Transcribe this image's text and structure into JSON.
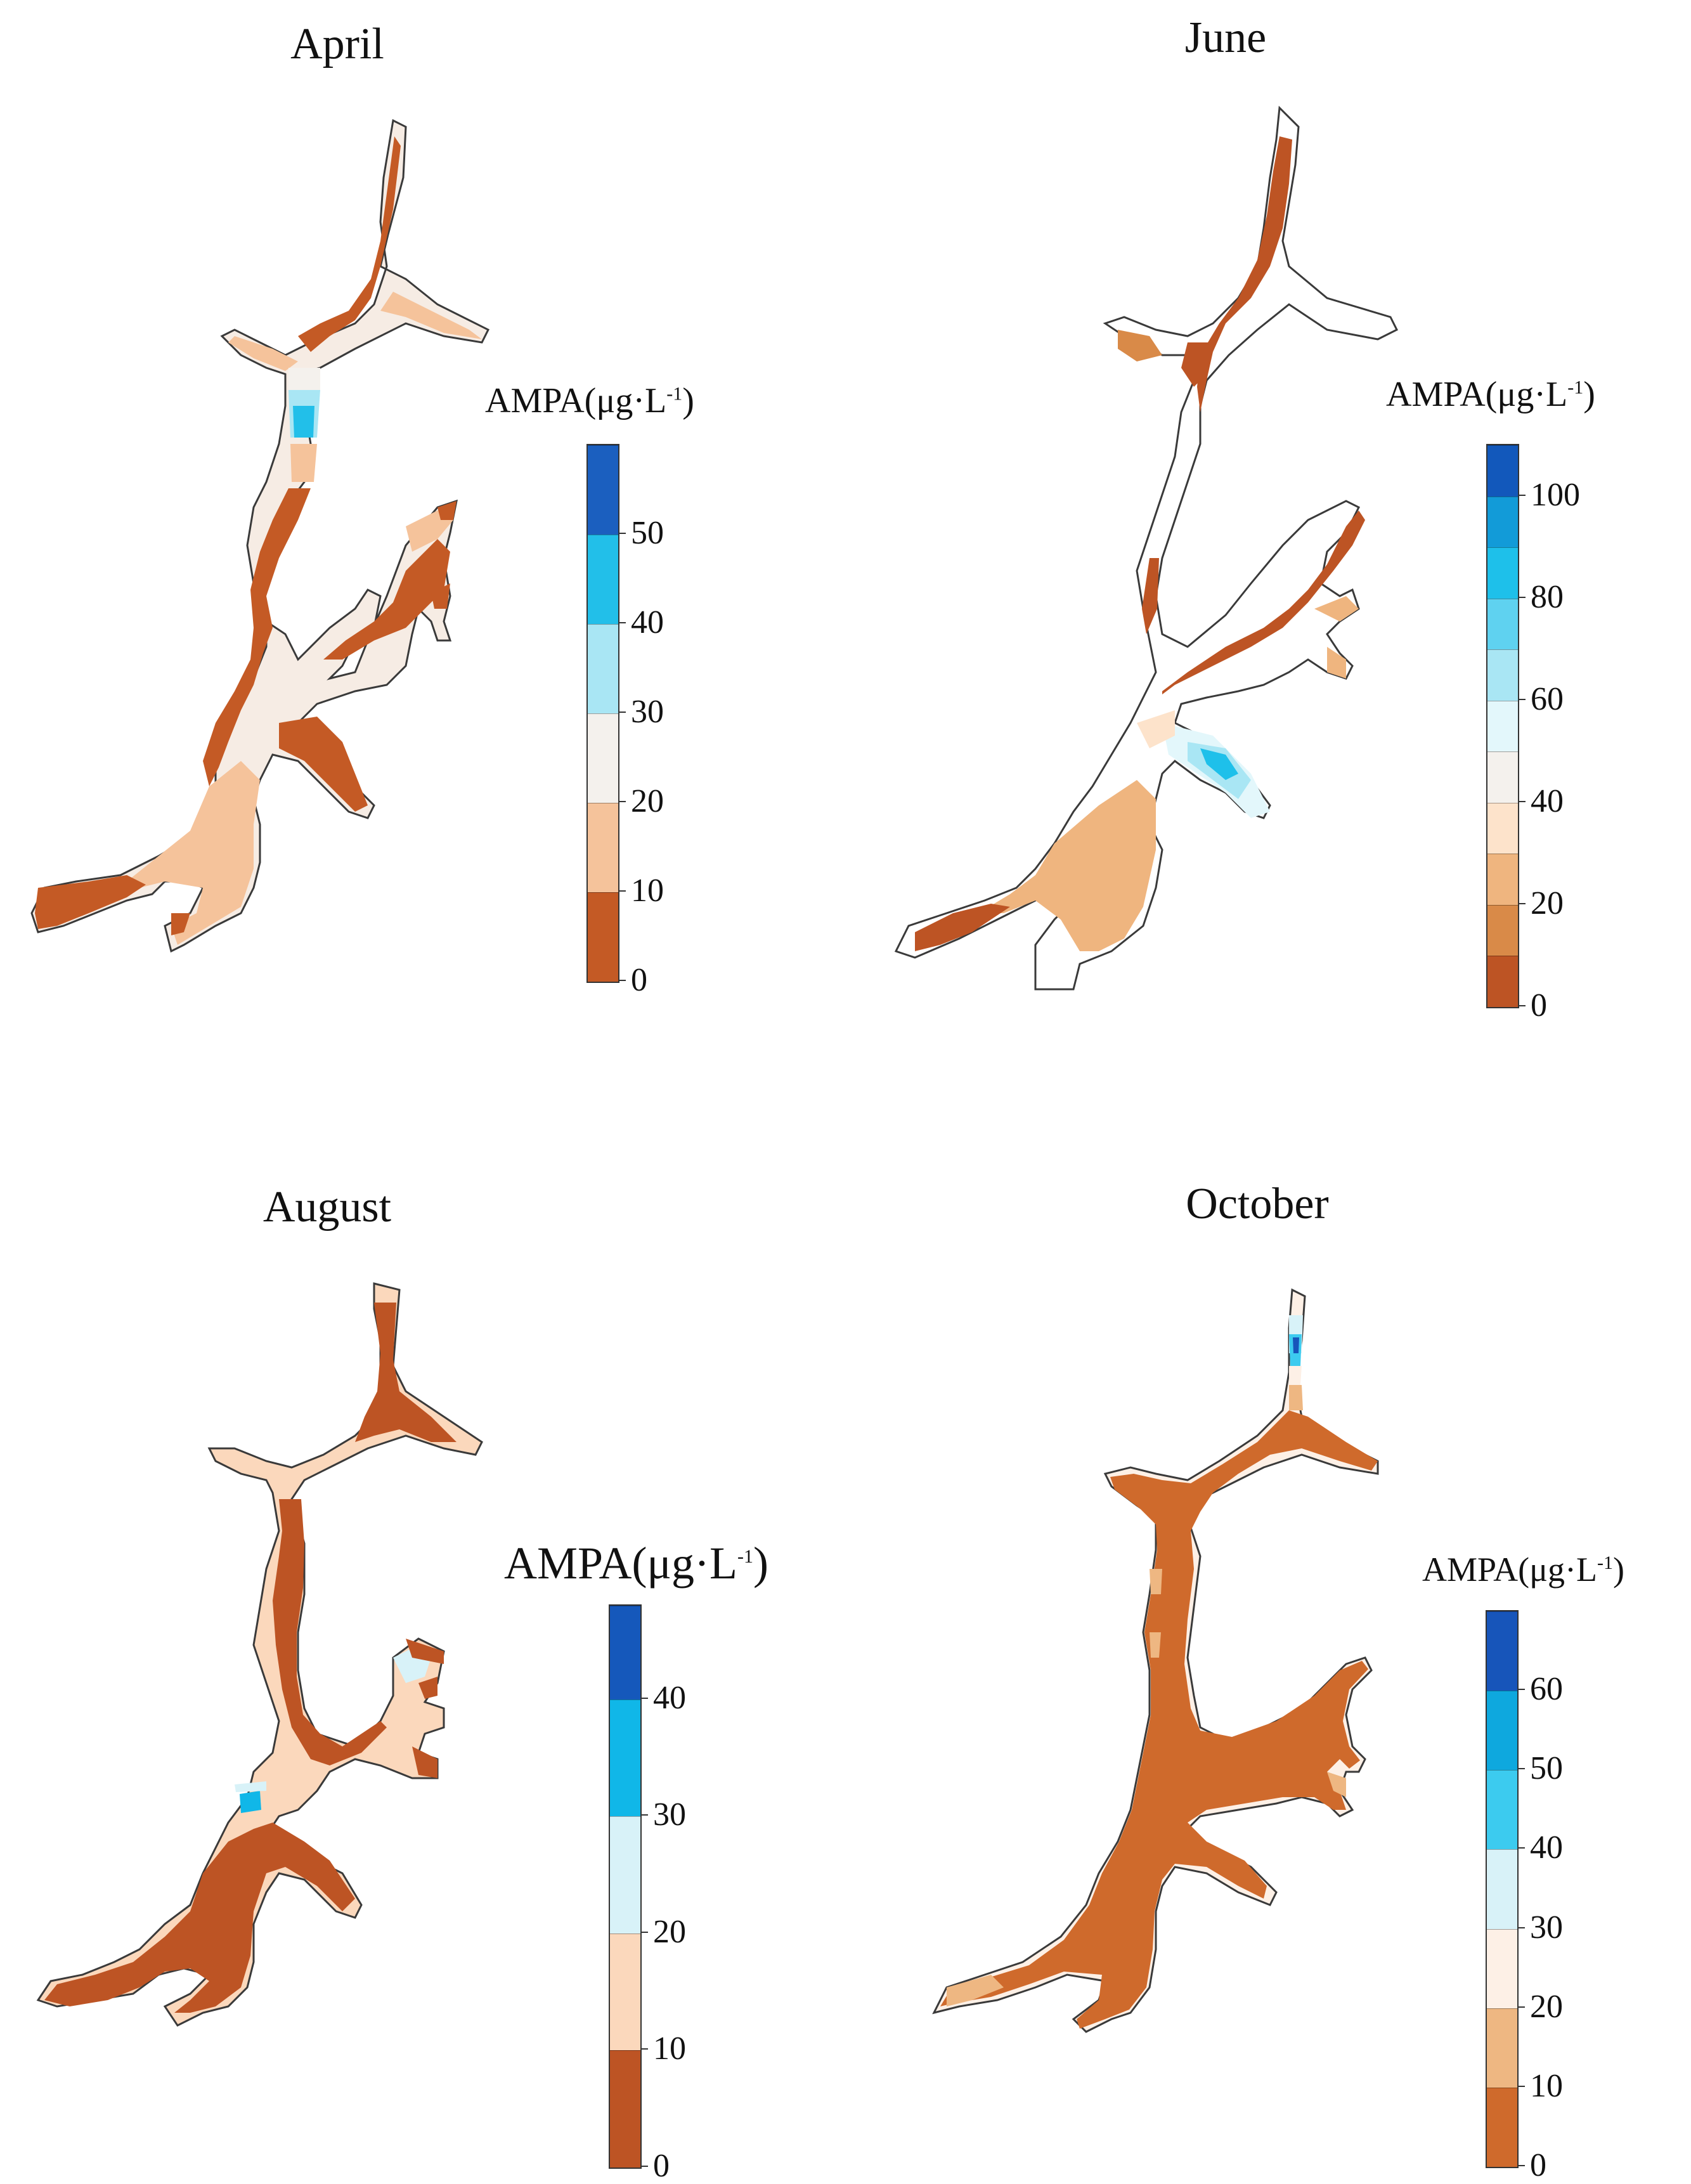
{
  "colors": {
    "c0": "#bd5424",
    "c1": "#cf7a42",
    "c2": "#eeb782",
    "c3": "#fbd8bc",
    "c4": "#fdf0e6",
    "c5": "#f4f1ed",
    "c6": "#d8f2f8",
    "c7": "#9fe3f2",
    "c8": "#33c5ec",
    "c9": "#0ea8de",
    "c10": "#0b77c9",
    "c11": "#1755ba",
    "outline": "#3a3a3a"
  },
  "panels": [
    {
      "title": "April",
      "legend": {
        "title_main": "AMPA(μg·L",
        "title_sup": "-1",
        "title_end": ")",
        "ticks": [
          "0",
          "10",
          "20",
          "30",
          "40",
          "50"
        ],
        "bins": [
          {
            "from": 0,
            "to": 10,
            "color": "#c45a25"
          },
          {
            "from": 10,
            "to": 20,
            "color": "#f5c39b"
          },
          {
            "from": 20,
            "to": 30,
            "color": "#f4f1ed"
          },
          {
            "from": 30,
            "to": 40,
            "color": "#a9e6f4"
          },
          {
            "from": 40,
            "to": 50,
            "color": "#22bfe9"
          },
          {
            "from": 50,
            "to": 60,
            "color": "#1b5fbf"
          }
        ],
        "max": 60
      }
    },
    {
      "title": "June",
      "legend": {
        "title_main": "AMPA(μg·L",
        "title_sup": "-1",
        "title_end": ")",
        "ticks": [
          "0",
          "20",
          "40",
          "60",
          "80",
          "100"
        ],
        "bins": [
          {
            "from": 0,
            "to": 10,
            "color": "#bd5424"
          },
          {
            "from": 10,
            "to": 20,
            "color": "#d98a48"
          },
          {
            "from": 20,
            "to": 30,
            "color": "#efb57f"
          },
          {
            "from": 30,
            "to": 40,
            "color": "#fde3cb"
          },
          {
            "from": 40,
            "to": 50,
            "color": "#f4f1ed"
          },
          {
            "from": 50,
            "to": 60,
            "color": "#e3f7fb"
          },
          {
            "from": 60,
            "to": 70,
            "color": "#a9e6f4"
          },
          {
            "from": 70,
            "to": 80,
            "color": "#5fd2f0"
          },
          {
            "from": 80,
            "to": 90,
            "color": "#1ec0ea"
          },
          {
            "from": 90,
            "to": 100,
            "color": "#129bd8"
          },
          {
            "from": 100,
            "to": 110,
            "color": "#1258bb"
          }
        ],
        "max": 110
      }
    },
    {
      "title": "August",
      "legend": {
        "title_main": "AMPA(μg·L",
        "title_sup": "-1",
        "title_end": ")",
        "ticks": [
          "0",
          "10",
          "20",
          "30",
          "40"
        ],
        "bins": [
          {
            "from": 0,
            "to": 10,
            "color": "#bd5424"
          },
          {
            "from": 10,
            "to": 20,
            "color": "#fbd8bc"
          },
          {
            "from": 20,
            "to": 30,
            "color": "#d8f2f8"
          },
          {
            "from": 30,
            "to": 40,
            "color": "#10b7e8"
          },
          {
            "from": 40,
            "to": 48,
            "color": "#1558bb"
          }
        ],
        "max": 48
      }
    },
    {
      "title": "October",
      "legend": {
        "title_main": "AMPA(μg·L",
        "title_sup": "-1",
        "title_end": ")",
        "ticks": [
          "0",
          "10",
          "20",
          "30",
          "40",
          "50",
          "60"
        ],
        "bins": [
          {
            "from": 0,
            "to": 10,
            "color": "#cf6a2c"
          },
          {
            "from": 10,
            "to": 20,
            "color": "#eeb782"
          },
          {
            "from": 20,
            "to": 30,
            "color": "#fdf0e6"
          },
          {
            "from": 30,
            "to": 40,
            "color": "#d8f2f8"
          },
          {
            "from": 40,
            "to": 50,
            "color": "#3ccbef"
          },
          {
            "from": 50,
            "to": 60,
            "color": "#0ea8de"
          },
          {
            "from": 60,
            "to": 70,
            "color": "#1755ba"
          }
        ],
        "max": 70
      }
    }
  ]
}
